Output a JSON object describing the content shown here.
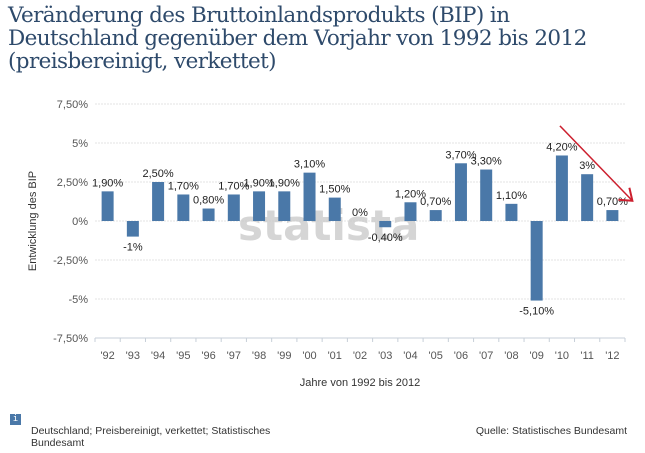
{
  "header": {
    "title": "Veränderung des Bruttoinlandsprodukts (BIP) in Deutschland gegenüber dem Vorjahr von 1992 bis 2012 (preisbereinigt, verkettet)"
  },
  "footer": {
    "info_icon": "info-icon",
    "info_icon_glyph": "i",
    "note": "Deutschland; Preisbereinigt, verkettet; Statistisches Bundesamt",
    "source": "Quelle: Statistisches Bundesamt"
  },
  "watermark": "statista",
  "colors": {
    "bar": "#4a78a8",
    "annotation_arrow": "#cc1f2e",
    "grid": "#e3e3e3"
  },
  "chart_data": {
    "type": "bar",
    "title": "Veränderung des Bruttoinlandsprodukts (BIP) in Deutschland gegenüber dem Vorjahr von 1992 bis 2012 (preisbereinigt, verkettet)",
    "xlabel": "Jahre von 1992 bis 2012",
    "ylabel": "Entwicklung des BIP",
    "categories": [
      "'92",
      "'93",
      "'94",
      "'95",
      "'96",
      "'97",
      "'98",
      "'99",
      "'00",
      "'01",
      "'02",
      "'03",
      "'04",
      "'05",
      "'06",
      "'07",
      "'08",
      "'09",
      "'10",
      "'11",
      "'12"
    ],
    "values": [
      1.9,
      -1.0,
      2.5,
      1.7,
      0.8,
      1.7,
      1.9,
      1.9,
      3.1,
      1.5,
      0.0,
      -0.4,
      1.2,
      0.7,
      3.7,
      3.3,
      1.1,
      -5.1,
      4.2,
      3.0,
      0.7
    ],
    "data_labels": [
      "1,90%",
      "-1%",
      "2,50%",
      "1,70%",
      "0,80%",
      "1,70%",
      "1,90%",
      "1,90%",
      "3,10%",
      "1,50%",
      "0%",
      "-0,40%",
      "1,20%",
      "0,70%",
      "3,70%",
      "3,30%",
      "1,10%",
      "-5,10%",
      "4,20%",
      "3%",
      "0,70%"
    ],
    "yticks": [
      7.5,
      5,
      2.5,
      0,
      -2.5,
      -5,
      -7.5
    ],
    "ytick_labels": [
      "7,50%",
      "5%",
      "2,50%",
      "0%",
      "-2,50%",
      "-5%",
      "-7,50%"
    ],
    "ylim": [
      -7.5,
      7.5
    ],
    "grid": true,
    "legend": "none",
    "annotations": [
      {
        "type": "arrow",
        "description": "red downward trend arrow from 2010 to 2012",
        "from_category": "'10",
        "to_category": "'12"
      }
    ]
  }
}
